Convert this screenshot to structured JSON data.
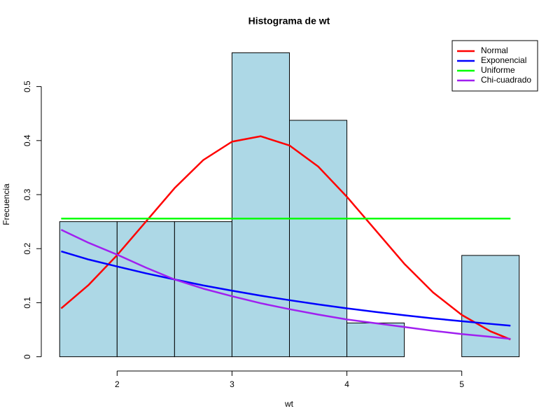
{
  "chart_data": {
    "type": "histogram",
    "title": "Histograma de wt",
    "x_label": "wt",
    "y_label": "Frecuencia",
    "bins": [
      1.5,
      2.0,
      2.5,
      3.0,
      3.5,
      4.0,
      4.5,
      5.0,
      5.5
    ],
    "values": [
      0.25,
      0.25,
      0.25,
      0.5625,
      0.4375,
      0.0625,
      0,
      0.1875
    ],
    "color": "#add8e6",
    "xlim": [
      1.34,
      5.66
    ],
    "ylim": [
      -0.0225,
      0.585
    ],
    "xticks": [
      2,
      3,
      4,
      5
    ],
    "yticks": [
      0.0,
      0.1,
      0.2,
      0.3,
      0.4,
      0.5
    ],
    "legend_position": "top-right",
    "curves_x": [
      1.513,
      1.75,
      2.0,
      2.25,
      2.5,
      2.75,
      3.0,
      3.25,
      3.5,
      3.75,
      4.0,
      4.25,
      4.5,
      4.75,
      5.0,
      5.25,
      5.424
    ],
    "series": [
      {
        "name": "Normal",
        "color": "#ff0000",
        "values": [
          0.0895,
          0.1325,
          0.188,
          0.25,
          0.312,
          0.364,
          0.398,
          0.408,
          0.391,
          0.352,
          0.296,
          0.234,
          0.172,
          0.119,
          0.0774,
          0.047,
          0.032
        ]
      },
      {
        "name": "Exponencial",
        "color": "#0000ff",
        "values": [
          0.195,
          0.18,
          0.167,
          0.1544,
          0.143,
          0.132,
          0.1223,
          0.113,
          0.1047,
          0.0968,
          0.0896,
          0.0829,
          0.0767,
          0.071,
          0.0657,
          0.0608,
          0.0575
        ]
      },
      {
        "name": "Uniforme",
        "color": "#00ff00",
        "values": [
          0.2557,
          0.2557,
          0.2557,
          0.2557,
          0.2557,
          0.2557,
          0.2557,
          0.2557,
          0.2557,
          0.2557,
          0.2557,
          0.2557,
          0.2557,
          0.2557,
          0.2557,
          0.2557,
          0.2557
        ]
      },
      {
        "name": "Chi-cuadrado",
        "color": "#a020f0",
        "values": [
          0.235,
          0.211,
          0.189,
          0.165,
          0.143,
          0.126,
          0.112,
          0.099,
          0.088,
          0.078,
          0.069,
          0.062,
          0.055,
          0.048,
          0.042,
          0.037,
          0.033
        ]
      }
    ]
  }
}
